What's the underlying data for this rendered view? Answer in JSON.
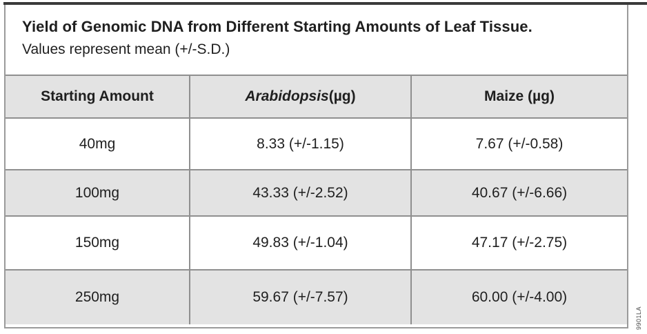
{
  "figure": {
    "title": "Yield of Genomic DNA from Different Starting Amounts of Leaf Tissue.",
    "subtitle": "Values represent mean (+/-S.D.)",
    "code": "9901LA"
  },
  "table": {
    "headers": {
      "col1": "Starting Amount",
      "col2_species": "Arabidopsis",
      "col2_unit": " (µg)",
      "col3": "Maize (µg)"
    },
    "rows": [
      [
        "40mg",
        "8.33 (+/-1.15)",
        "7.67 (+/-0.58)"
      ],
      [
        "100mg",
        "43.33 (+/-2.52)",
        "40.67 (+/-6.66)"
      ],
      [
        "150mg",
        "49.83 (+/-1.04)",
        "47.17 (+/-2.75)"
      ],
      [
        "250mg",
        "59.67 (+/-7.57)",
        "60.00 (+/-4.00)"
      ]
    ]
  },
  "colors": {
    "row_shade": "#e3e3e3",
    "border": "#8f8f8f",
    "top_rule": "#3a3a3a",
    "text": "#1f1f1f"
  },
  "chart_data": {
    "type": "table",
    "title": "Yield of Genomic DNA from Different Starting Amounts of Leaf Tissue.",
    "subtitle": "Values represent mean (+/-S.D.)",
    "columns": [
      "Starting Amount",
      "Arabidopsis (µg)",
      "Maize (µg)"
    ],
    "categories": [
      "40mg",
      "100mg",
      "150mg",
      "250mg"
    ],
    "series": [
      {
        "name": "Arabidopsis (µg)",
        "mean": [
          8.33,
          43.33,
          49.83,
          59.67
        ],
        "sd": [
          1.15,
          2.52,
          1.04,
          7.57
        ]
      },
      {
        "name": "Maize (µg)",
        "mean": [
          7.67,
          40.67,
          47.17,
          60.0
        ],
        "sd": [
          0.58,
          6.66,
          2.75,
          4.0
        ]
      }
    ],
    "layout": {
      "shaded_rows": "header and alternating (100mg, 250mg)",
      "grid": "full borders"
    }
  }
}
